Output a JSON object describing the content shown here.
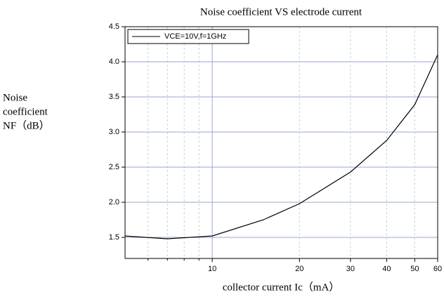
{
  "chart_data": {
    "type": "line",
    "title": "Noise coefficient VS electrode current",
    "xlabel": "collector current Ic（mA）",
    "ylabel": [
      "Noise",
      "coefficient",
      "NF（dB）"
    ],
    "x": [
      5,
      7,
      10,
      15,
      20,
      30,
      40,
      50,
      60
    ],
    "series": [
      {
        "name": "VCE=10V,f=1GHz",
        "color": "#000000",
        "values": [
          1.52,
          1.48,
          1.52,
          1.75,
          1.98,
          2.43,
          2.88,
          3.39,
          4.1
        ]
      }
    ],
    "xscale": "log",
    "xlim": [
      5,
      60
    ],
    "xticks": [
      10,
      20,
      30,
      40,
      50,
      60
    ],
    "xminor_ticks": [
      6,
      7,
      8,
      9
    ],
    "ylim": [
      1.2,
      4.5
    ],
    "yticks": [
      {
        "value": 1.5,
        "label": "1.5"
      },
      {
        "value": 2,
        "label": "2.0"
      },
      {
        "value": 2.5,
        "label": "2.5"
      },
      {
        "value": 3,
        "label": "3.0"
      },
      {
        "value": 3.5,
        "label": "3.5"
      },
      {
        "value": 4,
        "label": "4.0"
      },
      {
        "value": 4.5,
        "label": "4.5"
      }
    ],
    "grid": true,
    "legend": "upper left"
  }
}
